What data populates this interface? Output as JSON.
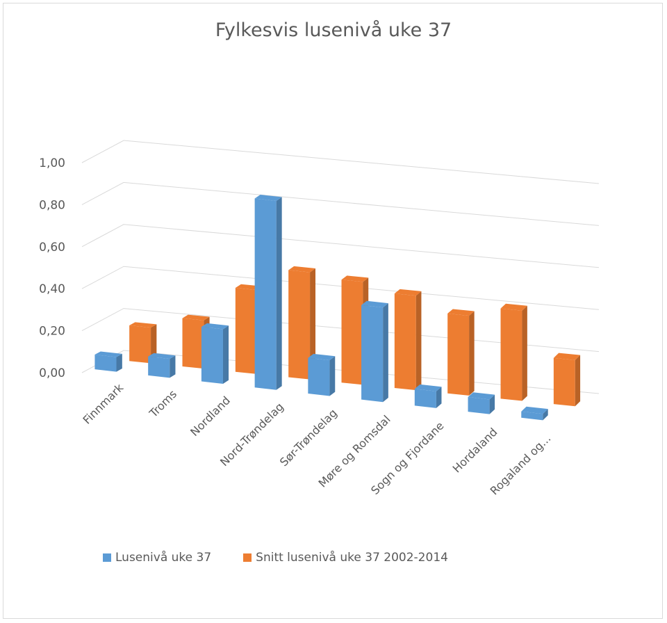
{
  "chart_data": {
    "type": "bar",
    "title": "Fylkesvis lusenivå uke 37",
    "categories": [
      "Finnmark",
      "Troms",
      "Nordland",
      "Nord-Trøndelag",
      "Sør-Trøndelag",
      "Møre og Romsdal",
      "Sogn og Fjordane",
      "Hordaland",
      "Rogaland og..."
    ],
    "yticks": [
      "0,00",
      "0,20",
      "0,40",
      "0,60",
      "0,80",
      "1,00"
    ],
    "ylim": [
      0,
      1.0
    ],
    "grid": true,
    "legend_position": "bottom",
    "series": [
      {
        "name": "Lusenivå uke 37",
        "color": "#5B9BD5",
        "values": [
          0.07,
          0.09,
          0.26,
          0.9,
          0.17,
          0.45,
          0.08,
          0.07,
          0.03
        ]
      },
      {
        "name": "Snitt lusenivå uke 37 2002-2014",
        "color": "#ED7D31",
        "values": [
          0.17,
          0.23,
          0.4,
          0.51,
          0.49,
          0.45,
          0.38,
          0.43,
          0.22
        ]
      }
    ]
  }
}
